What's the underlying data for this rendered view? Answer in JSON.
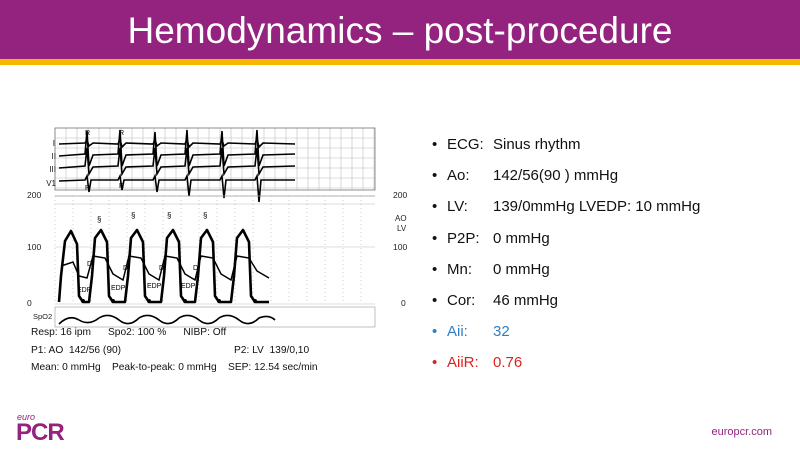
{
  "title": "Hemodynamics – post-procedure",
  "monitor": {
    "leads": [
      "I",
      "II",
      "III",
      "V1"
    ],
    "scale_left_top": "200",
    "scale_left_mid": "100",
    "scale_left_bottom": "0",
    "scale_right_top": "200",
    "scale_right_mid": "100",
    "scale_right_bottom": "0",
    "pressure_labels": [
      "AO",
      "LV"
    ],
    "spo2_label": "SpO2",
    "line1": "Resp: 16 ipm      Spo2: 100 %      NIBP: Off",
    "line2_left": "P1: AO  142/56 (90)",
    "line2_right": "P2: LV  139/0,10",
    "line3": "Mean: 0 mmHg    Peak-to-peak: 0 mmHg    SEP: 12.54 sec/min",
    "r_marker": "R",
    "section_marker": "§",
    "d_marker": "D",
    "edp_marker": "EDP"
  },
  "bullets": [
    {
      "label": "ECG:",
      "value": "Sinus rhythm",
      "color": "#111111"
    },
    {
      "label": "Ao:",
      "value": "142/56(90 ) mmHg",
      "color": "#111111"
    },
    {
      "label": "LV:",
      "value": "139/0mmHg LVEDP: 10 mmHg",
      "color": "#111111"
    },
    {
      "label": "P2P:",
      "value": "0 mmHg",
      "color": "#111111"
    },
    {
      "label": "Mn:",
      "value": "0 mmHg",
      "color": "#111111"
    },
    {
      "label": "Cor:",
      "value": "46 mmHg",
      "color": "#111111"
    },
    {
      "label": "Aii:",
      "value": "32",
      "color": "#2e7fc4"
    },
    {
      "label": "AiiR:",
      "value": "0.76",
      "color": "#e02020"
    }
  ],
  "bullet_glyph": "•",
  "logo": {
    "small": "euro",
    "big": "PCR"
  },
  "footer_url": "europcr.com",
  "colors": {
    "header": "#94237f",
    "stripe": "#f5b800"
  }
}
